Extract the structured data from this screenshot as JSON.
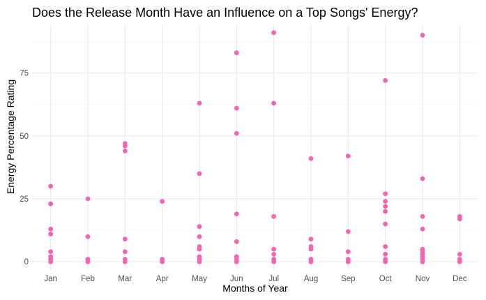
{
  "chart_data": {
    "type": "scatter",
    "title": "Does the Release Month Have an Influence on a Top Songs' Energy?",
    "xlabel": "Months of Year",
    "ylabel": "Energy Percentage Rating",
    "categories": [
      "Jan",
      "Feb",
      "Mar",
      "Apr",
      "May",
      "Jun",
      "Jul",
      "Aug",
      "Sep",
      "Oct",
      "Nov",
      "Dec"
    ],
    "y_ticks": [
      0,
      25,
      50,
      75
    ],
    "ylim": [
      -3,
      94
    ],
    "grid": true,
    "point_color": "#f067b0",
    "points": [
      {
        "x": "Jan",
        "y": 30
      },
      {
        "x": "Jan",
        "y": 23
      },
      {
        "x": "Jan",
        "y": 13
      },
      {
        "x": "Jan",
        "y": 11
      },
      {
        "x": "Jan",
        "y": 4
      },
      {
        "x": "Jan",
        "y": 2
      },
      {
        "x": "Jan",
        "y": 1
      },
      {
        "x": "Jan",
        "y": 0
      },
      {
        "x": "Feb",
        "y": 25
      },
      {
        "x": "Feb",
        "y": 10
      },
      {
        "x": "Feb",
        "y": 1
      },
      {
        "x": "Feb",
        "y": 0
      },
      {
        "x": "Mar",
        "y": 47
      },
      {
        "x": "Mar",
        "y": 46
      },
      {
        "x": "Mar",
        "y": 44
      },
      {
        "x": "Mar",
        "y": 9
      },
      {
        "x": "Mar",
        "y": 4
      },
      {
        "x": "Mar",
        "y": 1
      },
      {
        "x": "Mar",
        "y": 0
      },
      {
        "x": "Apr",
        "y": 24
      },
      {
        "x": "Apr",
        "y": 1
      },
      {
        "x": "Apr",
        "y": 0
      },
      {
        "x": "May",
        "y": 63
      },
      {
        "x": "May",
        "y": 35
      },
      {
        "x": "May",
        "y": 14
      },
      {
        "x": "May",
        "y": 10
      },
      {
        "x": "May",
        "y": 6
      },
      {
        "x": "May",
        "y": 5
      },
      {
        "x": "May",
        "y": 2
      },
      {
        "x": "May",
        "y": 1
      },
      {
        "x": "May",
        "y": 0
      },
      {
        "x": "Jun",
        "y": 83
      },
      {
        "x": "Jun",
        "y": 61
      },
      {
        "x": "Jun",
        "y": 51
      },
      {
        "x": "Jun",
        "y": 19
      },
      {
        "x": "Jun",
        "y": 8
      },
      {
        "x": "Jun",
        "y": 2
      },
      {
        "x": "Jun",
        "y": 1
      },
      {
        "x": "Jun",
        "y": 0
      },
      {
        "x": "Jul",
        "y": 91
      },
      {
        "x": "Jul",
        "y": 63
      },
      {
        "x": "Jul",
        "y": 18
      },
      {
        "x": "Jul",
        "y": 5
      },
      {
        "x": "Jul",
        "y": 3
      },
      {
        "x": "Jul",
        "y": 1
      },
      {
        "x": "Jul",
        "y": 0
      },
      {
        "x": "Aug",
        "y": 41
      },
      {
        "x": "Aug",
        "y": 9
      },
      {
        "x": "Aug",
        "y": 6
      },
      {
        "x": "Aug",
        "y": 5
      },
      {
        "x": "Aug",
        "y": 1
      },
      {
        "x": "Aug",
        "y": 0
      },
      {
        "x": "Sep",
        "y": 42
      },
      {
        "x": "Sep",
        "y": 12
      },
      {
        "x": "Sep",
        "y": 4
      },
      {
        "x": "Sep",
        "y": 1
      },
      {
        "x": "Sep",
        "y": 0
      },
      {
        "x": "Oct",
        "y": 72
      },
      {
        "x": "Oct",
        "y": 27
      },
      {
        "x": "Oct",
        "y": 24
      },
      {
        "x": "Oct",
        "y": 22
      },
      {
        "x": "Oct",
        "y": 20
      },
      {
        "x": "Oct",
        "y": 15
      },
      {
        "x": "Oct",
        "y": 6
      },
      {
        "x": "Oct",
        "y": 3
      },
      {
        "x": "Oct",
        "y": 1
      },
      {
        "x": "Oct",
        "y": 0
      },
      {
        "x": "Nov",
        "y": 90
      },
      {
        "x": "Nov",
        "y": 33
      },
      {
        "x": "Nov",
        "y": 18
      },
      {
        "x": "Nov",
        "y": 13
      },
      {
        "x": "Nov",
        "y": 5
      },
      {
        "x": "Nov",
        "y": 4
      },
      {
        "x": "Nov",
        "y": 3
      },
      {
        "x": "Nov",
        "y": 2
      },
      {
        "x": "Nov",
        "y": 1
      },
      {
        "x": "Nov",
        "y": 0
      },
      {
        "x": "Dec",
        "y": 18
      },
      {
        "x": "Dec",
        "y": 17
      },
      {
        "x": "Dec",
        "y": 3
      },
      {
        "x": "Dec",
        "y": 1
      },
      {
        "x": "Dec",
        "y": 0
      }
    ]
  }
}
